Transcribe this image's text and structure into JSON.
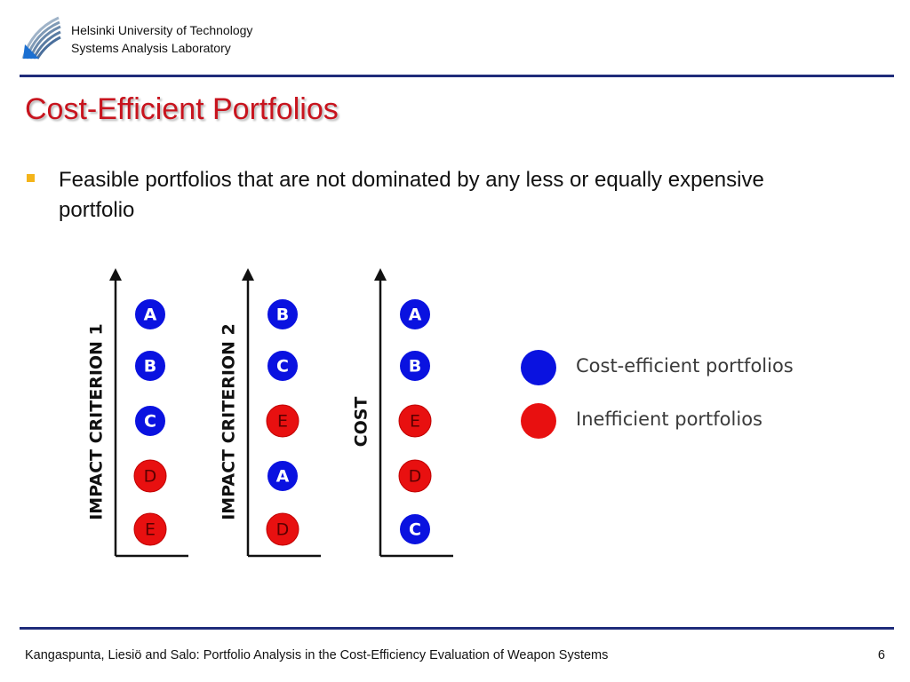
{
  "header": {
    "institution_line1": "Helsinki University of Technology",
    "institution_line2": "Systems Analysis Laboratory"
  },
  "slide": {
    "title": "Cost-Efficient Portfolios",
    "bullet": "Feasible portfolios that are not dominated by any less or equally expensive portfolio"
  },
  "diagram": {
    "colors": {
      "efficient": "#0a12e0",
      "inefficient": "#e81010"
    },
    "axes": [
      {
        "label": "IMPACT CRITERION 1",
        "nodes": [
          {
            "letter": "A",
            "status": "efficient"
          },
          {
            "letter": "B",
            "status": "efficient"
          },
          {
            "letter": "C",
            "status": "efficient"
          },
          {
            "letter": "D",
            "status": "inefficient"
          },
          {
            "letter": "E",
            "status": "inefficient"
          }
        ]
      },
      {
        "label": "IMPACT CRITERION 2",
        "nodes": [
          {
            "letter": "B",
            "status": "efficient"
          },
          {
            "letter": "C",
            "status": "efficient"
          },
          {
            "letter": "E",
            "status": "inefficient"
          },
          {
            "letter": "A",
            "status": "efficient"
          },
          {
            "letter": "D",
            "status": "inefficient"
          }
        ]
      },
      {
        "label": "COST",
        "nodes": [
          {
            "letter": "A",
            "status": "efficient"
          },
          {
            "letter": "B",
            "status": "efficient"
          },
          {
            "letter": "E",
            "status": "inefficient"
          },
          {
            "letter": "D",
            "status": "inefficient"
          },
          {
            "letter": "C",
            "status": "efficient"
          }
        ]
      }
    ],
    "legend": {
      "efficient_label": "Cost-efficient portfolios",
      "inefficient_label": "Inefficient portfolios"
    }
  },
  "footer": {
    "citation": "Kangaspunta, Liesiö and Salo: Portfolio Analysis in the Cost-Efficiency Evaluation of Weapon Systems",
    "page_number": "6"
  }
}
